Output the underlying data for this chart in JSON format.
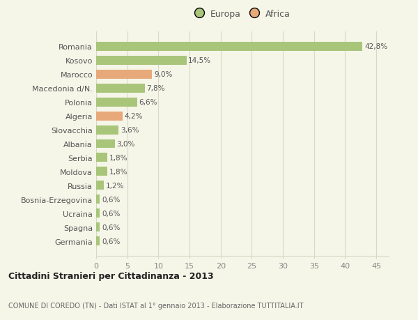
{
  "categories": [
    "Romania",
    "Kosovo",
    "Marocco",
    "Macedonia d/N.",
    "Polonia",
    "Algeria",
    "Slovacchia",
    "Albania",
    "Serbia",
    "Moldova",
    "Russia",
    "Bosnia-Erzegovina",
    "Ucraina",
    "Spagna",
    "Germania"
  ],
  "values": [
    42.8,
    14.5,
    9.0,
    7.8,
    6.6,
    4.2,
    3.6,
    3.0,
    1.8,
    1.8,
    1.2,
    0.6,
    0.6,
    0.6,
    0.6
  ],
  "labels": [
    "42,8%",
    "14,5%",
    "9,0%",
    "7,8%",
    "6,6%",
    "4,2%",
    "3,6%",
    "3,0%",
    "1,8%",
    "1,8%",
    "1,2%",
    "0,6%",
    "0,6%",
    "0,6%",
    "0,6%"
  ],
  "continent": [
    "Europa",
    "Europa",
    "Africa",
    "Europa",
    "Europa",
    "Africa",
    "Europa",
    "Europa",
    "Europa",
    "Europa",
    "Europa",
    "Europa",
    "Europa",
    "Europa",
    "Europa"
  ],
  "color_europa": "#a8c57a",
  "color_africa": "#e8a97a",
  "background_color": "#f5f5e8",
  "grid_color": "#d8d8c8",
  "title": "Cittadini Stranieri per Cittadinanza - 2013",
  "subtitle": "COMUNE DI COREDO (TN) - Dati ISTAT al 1° gennaio 2013 - Elaborazione TUTTITALIA.IT",
  "legend_europa": "Europa",
  "legend_africa": "Africa",
  "xlim": [
    0,
    47
  ],
  "xticks": [
    0,
    5,
    10,
    15,
    20,
    25,
    30,
    35,
    40,
    45
  ]
}
